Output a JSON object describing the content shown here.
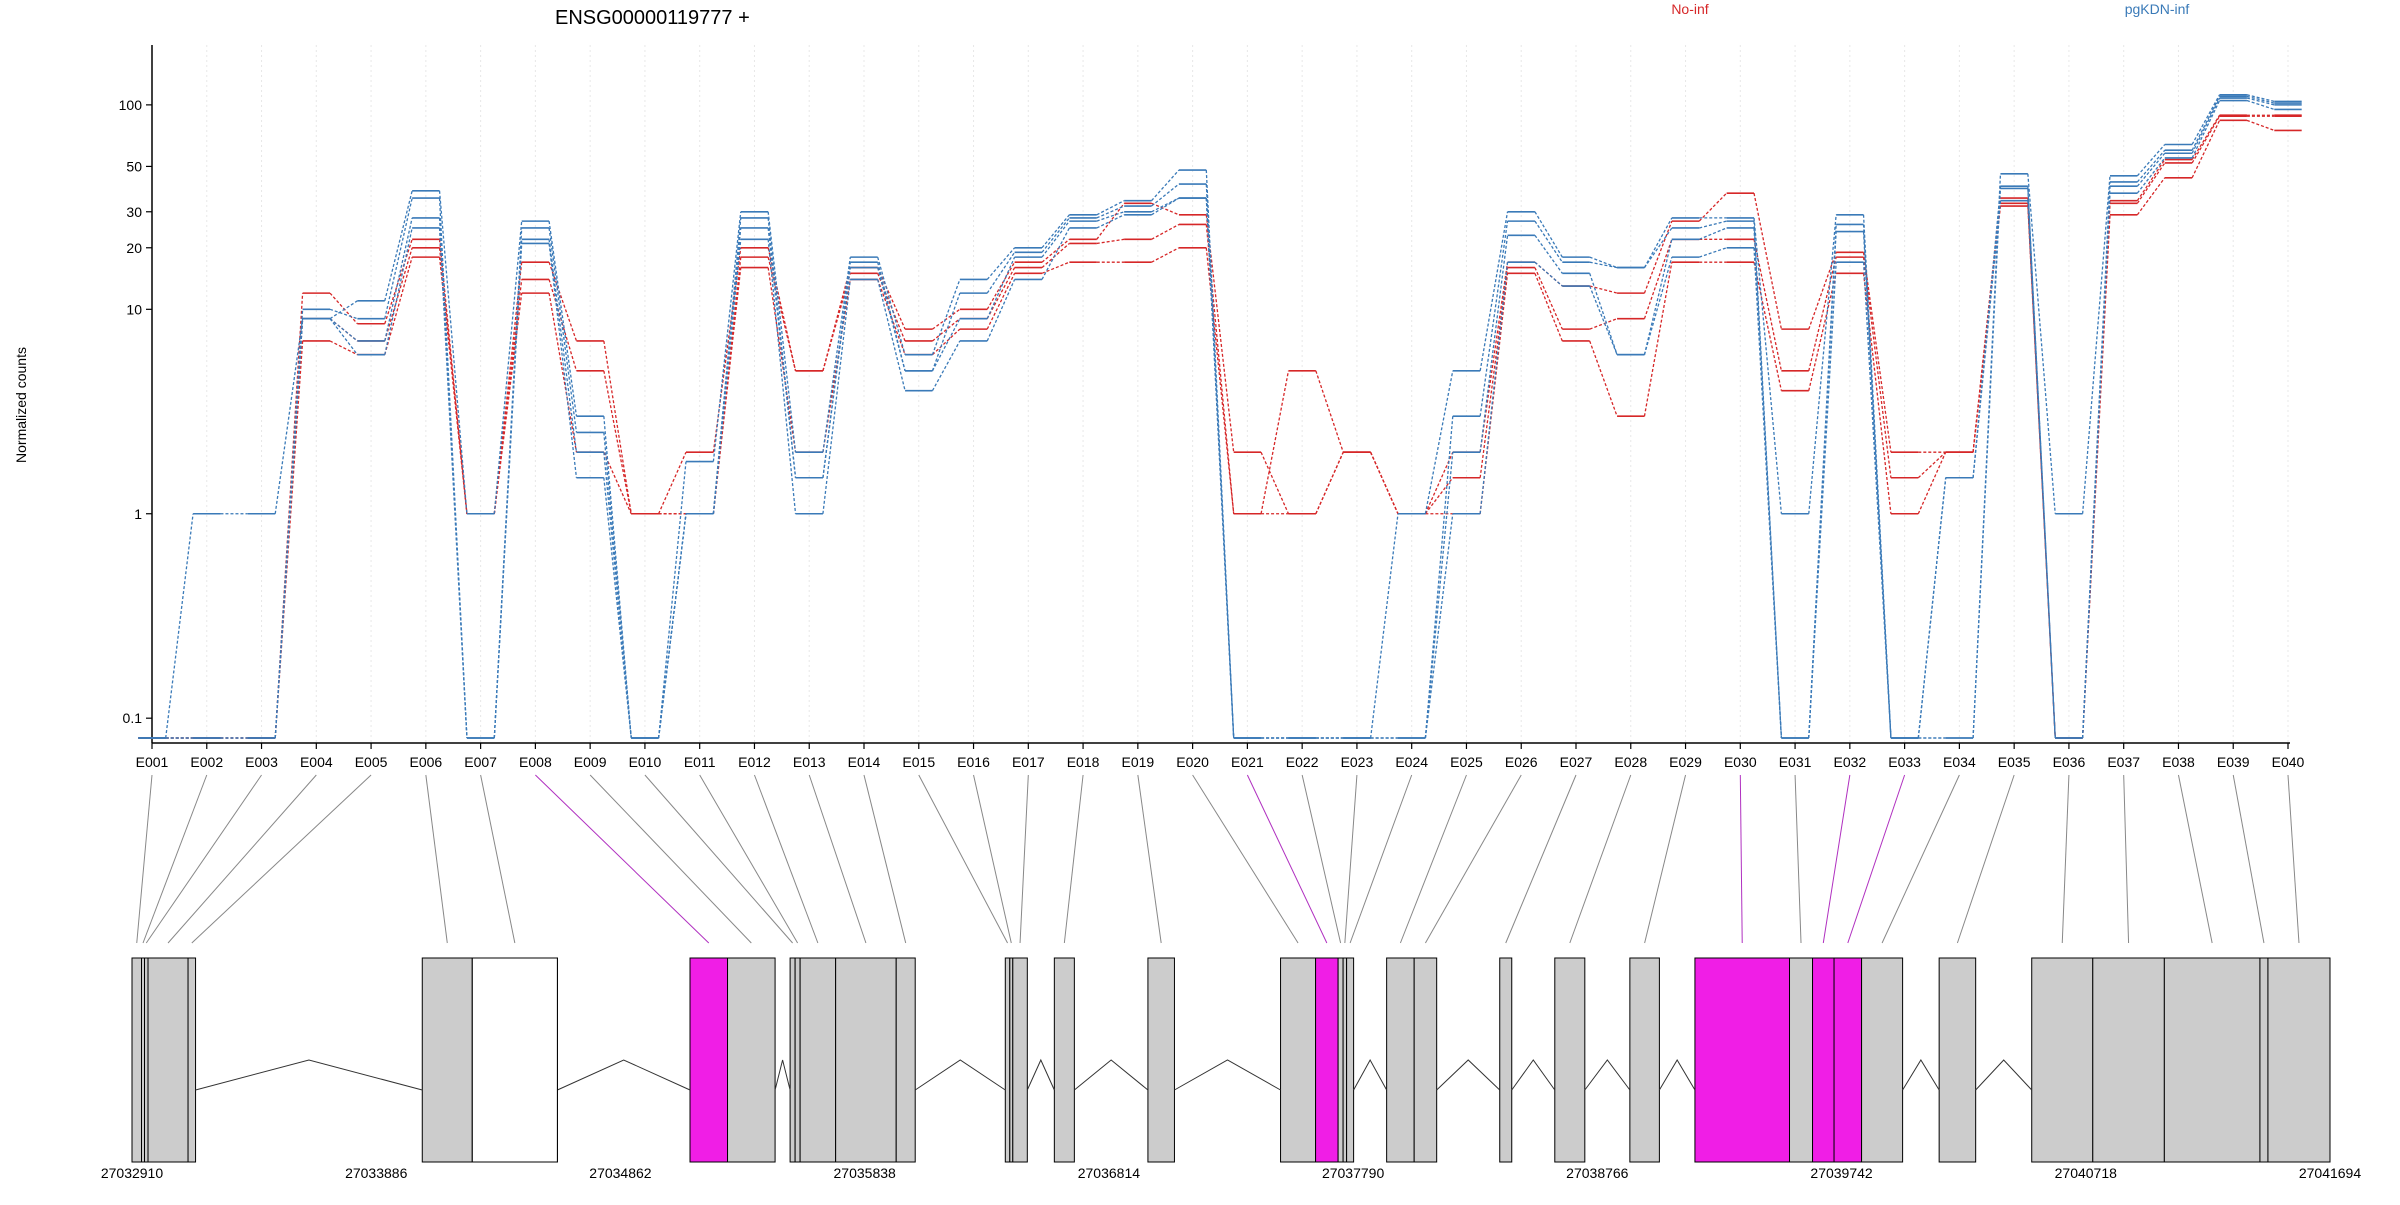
{
  "title": "ENSG00000119777 +",
  "legend": [
    {
      "label": "No-inf",
      "color": "#d62728"
    },
    {
      "label": "pgKDN-inf",
      "color": "#3a7ab8"
    }
  ],
  "highlight_color": "#f01ee6",
  "chart_data": {
    "type": "line",
    "title": "ENSG00000119777 +",
    "ylabel": "Normalized counts",
    "yscale": "log",
    "ylim": [
      0.08,
      140
    ],
    "yticks": [
      0.1,
      1,
      10,
      20,
      30,
      50,
      100
    ],
    "ytick_labels": [
      "0.1",
      "1",
      "10",
      "20",
      "30",
      "50",
      "100"
    ],
    "grid": "vertical dotted",
    "legend_position": "top",
    "categories": [
      "E001",
      "E002",
      "E003",
      "E004",
      "E005",
      "E006",
      "E007",
      "E008",
      "E009",
      "E010",
      "E011",
      "E012",
      "E013",
      "E014",
      "E015",
      "E016",
      "E017",
      "E018",
      "E019",
      "E020",
      "E021",
      "E022",
      "E023",
      "E024",
      "E025",
      "E026",
      "E027",
      "E028",
      "E029",
      "E030",
      "E031",
      "E032",
      "E033",
      "E034",
      "E035",
      "E036",
      "E037",
      "E038",
      "E039",
      "E040"
    ],
    "series": [
      {
        "group": "No-inf",
        "color": "#d62728",
        "values": [
          0.08,
          0.08,
          0.08,
          12,
          8.5,
          22,
          1,
          17,
          7,
          1,
          2,
          20,
          5,
          16,
          8,
          10,
          17,
          22,
          33,
          29,
          2,
          1,
          2,
          1,
          2,
          17,
          13,
          12,
          27,
          37,
          8,
          19,
          2,
          2,
          35,
          0.08,
          34,
          54,
          89,
          89
        ]
      },
      {
        "group": "No-inf",
        "color": "#d62728",
        "values": [
          0.08,
          0.08,
          0.08,
          9,
          7,
          20,
          1,
          14,
          5,
          1,
          1,
          18,
          5,
          15,
          7,
          9,
          16,
          21,
          22,
          26,
          1,
          5,
          2,
          1,
          1.5,
          16,
          8,
          9,
          22,
          22,
          5,
          18,
          1.5,
          2,
          33,
          0.08,
          33,
          52,
          88,
          88
        ]
      },
      {
        "group": "No-inf",
        "color": "#d62728",
        "values": [
          0.08,
          0.08,
          0.08,
          7,
          6,
          18,
          1,
          12,
          2,
          1,
          1,
          16,
          2,
          14,
          6,
          8,
          15,
          17,
          17,
          20,
          1,
          1,
          2,
          1,
          1,
          15,
          7,
          3,
          17,
          17,
          4,
          15,
          1,
          2,
          32,
          0.08,
          29,
          44,
          84,
          75
        ]
      },
      {
        "group": "pgKDN-inf",
        "color": "#3a7ab8",
        "values": [
          0.08,
          1,
          1,
          9,
          11,
          38,
          1,
          27,
          3,
          0.08,
          1.8,
          30,
          2,
          18,
          6,
          14,
          20,
          29,
          34,
          48,
          0.08,
          0.08,
          0.08,
          1,
          5,
          30,
          18,
          16,
          28,
          28,
          1,
          29,
          0.08,
          0.08,
          46,
          1,
          45,
          64,
          112,
          104
        ]
      },
      {
        "group": "pgKDN-inf",
        "color": "#3a7ab8",
        "values": [
          0.08,
          0.08,
          0.08,
          10,
          9,
          35,
          0.08,
          25,
          2.5,
          0.08,
          1,
          28,
          1.5,
          17,
          5,
          12,
          19,
          28,
          32,
          41,
          0.08,
          0.08,
          0.08,
          0.08,
          3,
          27,
          17,
          16,
          25,
          27,
          0.08,
          26,
          0.08,
          0.08,
          40,
          0.08,
          42,
          60,
          110,
          102
        ]
      },
      {
        "group": "pgKDN-inf",
        "color": "#3a7ab8",
        "values": [
          0.08,
          0.08,
          0.08,
          9,
          7,
          28,
          0.08,
          22,
          2,
          0.08,
          1,
          25,
          1.5,
          16,
          5,
          9,
          18,
          27,
          30,
          35,
          0.08,
          0.08,
          0.08,
          0.08,
          2,
          23,
          15,
          6,
          22,
          25,
          0.08,
          24,
          0.08,
          1.5,
          39,
          0.08,
          40,
          58,
          108,
          100
        ]
      },
      {
        "group": "pgKDN-inf",
        "color": "#3a7ab8",
        "values": [
          0.08,
          0.08,
          0.08,
          9,
          6,
          25,
          0.08,
          21,
          1.5,
          0.08,
          1,
          22,
          1,
          14,
          4,
          7,
          14,
          25,
          29,
          35,
          0.08,
          0.08,
          0.08,
          0.08,
          1,
          17,
          13,
          6,
          18,
          20,
          0.08,
          17,
          0.08,
          1.5,
          34,
          0.08,
          37,
          55,
          105,
          95
        ]
      }
    ],
    "genomic_axis": {
      "tick_labels": [
        "27032910",
        "27033886",
        "27034862",
        "27035838",
        "27036814",
        "27037790",
        "27038766",
        "27039742",
        "27040718",
        "27041694"
      ],
      "exons": [
        {
          "id": "E001",
          "start": 27032910,
          "end": 27032948,
          "highlight": false
        },
        {
          "id": "E002",
          "start": 27032948,
          "end": 27032960,
          "highlight": false
        },
        {
          "id": "E003",
          "start": 27032960,
          "end": 27032974,
          "highlight": false
        },
        {
          "id": "E004",
          "start": 27032974,
          "end": 27033134,
          "highlight": false
        },
        {
          "id": "E005",
          "start": 27033134,
          "end": 27033164,
          "highlight": false
        },
        {
          "id": "E006",
          "start": 27034070,
          "end": 27034270,
          "highlight": false
        },
        {
          "id": "E007",
          "start": 27034270,
          "end": 27034610,
          "highlight": false
        },
        {
          "id": "E008",
          "start": 27035140,
          "end": 27035290,
          "highlight": true
        },
        {
          "id": "E009",
          "start": 27035290,
          "end": 27035480,
          "highlight": false
        },
        {
          "id": "E010",
          "start": 27035540,
          "end": 27035560,
          "highlight": false
        },
        {
          "id": "E011",
          "start": 27035560,
          "end": 27035580,
          "highlight": false
        },
        {
          "id": "E012",
          "start": 27035580,
          "end": 27035722,
          "highlight": false
        },
        {
          "id": "E013",
          "start": 27035722,
          "end": 27035964,
          "highlight": false
        },
        {
          "id": "E014",
          "start": 27035964,
          "end": 27036040,
          "highlight": false
        },
        {
          "id": "E015",
          "start": 27036400,
          "end": 27036418,
          "highlight": false
        },
        {
          "id": "E016",
          "start": 27036418,
          "end": 27036430,
          "highlight": false
        },
        {
          "id": "E017",
          "start": 27036430,
          "end": 27036488,
          "highlight": false
        },
        {
          "id": "E018",
          "start": 27036596,
          "end": 27036676,
          "highlight": false
        },
        {
          "id": "E019",
          "start": 27036970,
          "end": 27037076,
          "highlight": false
        },
        {
          "id": "E020",
          "start": 27037500,
          "end": 27037640,
          "highlight": false
        },
        {
          "id": "E021",
          "start": 27037640,
          "end": 27037730,
          "highlight": true
        },
        {
          "id": "E022",
          "start": 27037730,
          "end": 27037750,
          "highlight": false
        },
        {
          "id": "E023",
          "start": 27037750,
          "end": 27037764,
          "highlight": false
        },
        {
          "id": "E024",
          "start": 27037764,
          "end": 27037792,
          "highlight": false
        },
        {
          "id": "E025",
          "start": 27037924,
          "end": 27038034,
          "highlight": false
        },
        {
          "id": "E026",
          "start": 27038034,
          "end": 27038124,
          "highlight": false
        },
        {
          "id": "E027",
          "start": 27038376,
          "end": 27038424,
          "highlight": false
        },
        {
          "id": "E028",
          "start": 27038596,
          "end": 27038716,
          "highlight": false
        },
        {
          "id": "E029",
          "start": 27038896,
          "end": 27039014,
          "highlight": false
        },
        {
          "id": "E030",
          "start": 27039156,
          "end": 27039534,
          "highlight": true
        },
        {
          "id": "E031",
          "start": 27039534,
          "end": 27039626,
          "highlight": false
        },
        {
          "id": "E032",
          "start": 27039626,
          "end": 27039712,
          "highlight": true
        },
        {
          "id": "E033",
          "start": 27039712,
          "end": 27039822,
          "highlight": true
        },
        {
          "id": "E034",
          "start": 27039822,
          "end": 27039986,
          "highlight": false
        },
        {
          "id": "E035",
          "start": 27040132,
          "end": 27040278,
          "highlight": false
        },
        {
          "id": "E036",
          "start": 27040502,
          "end": 27040746,
          "highlight": false
        },
        {
          "id": "E037",
          "start": 27040746,
          "end": 27041032,
          "highlight": false
        },
        {
          "id": "E038",
          "start": 27041032,
          "end": 27041414,
          "highlight": false
        },
        {
          "id": "E039",
          "start": 27041414,
          "end": 27041446,
          "highlight": false
        },
        {
          "id": "E040",
          "start": 27041446,
          "end": 27041694,
          "highlight": false
        }
      ]
    }
  }
}
